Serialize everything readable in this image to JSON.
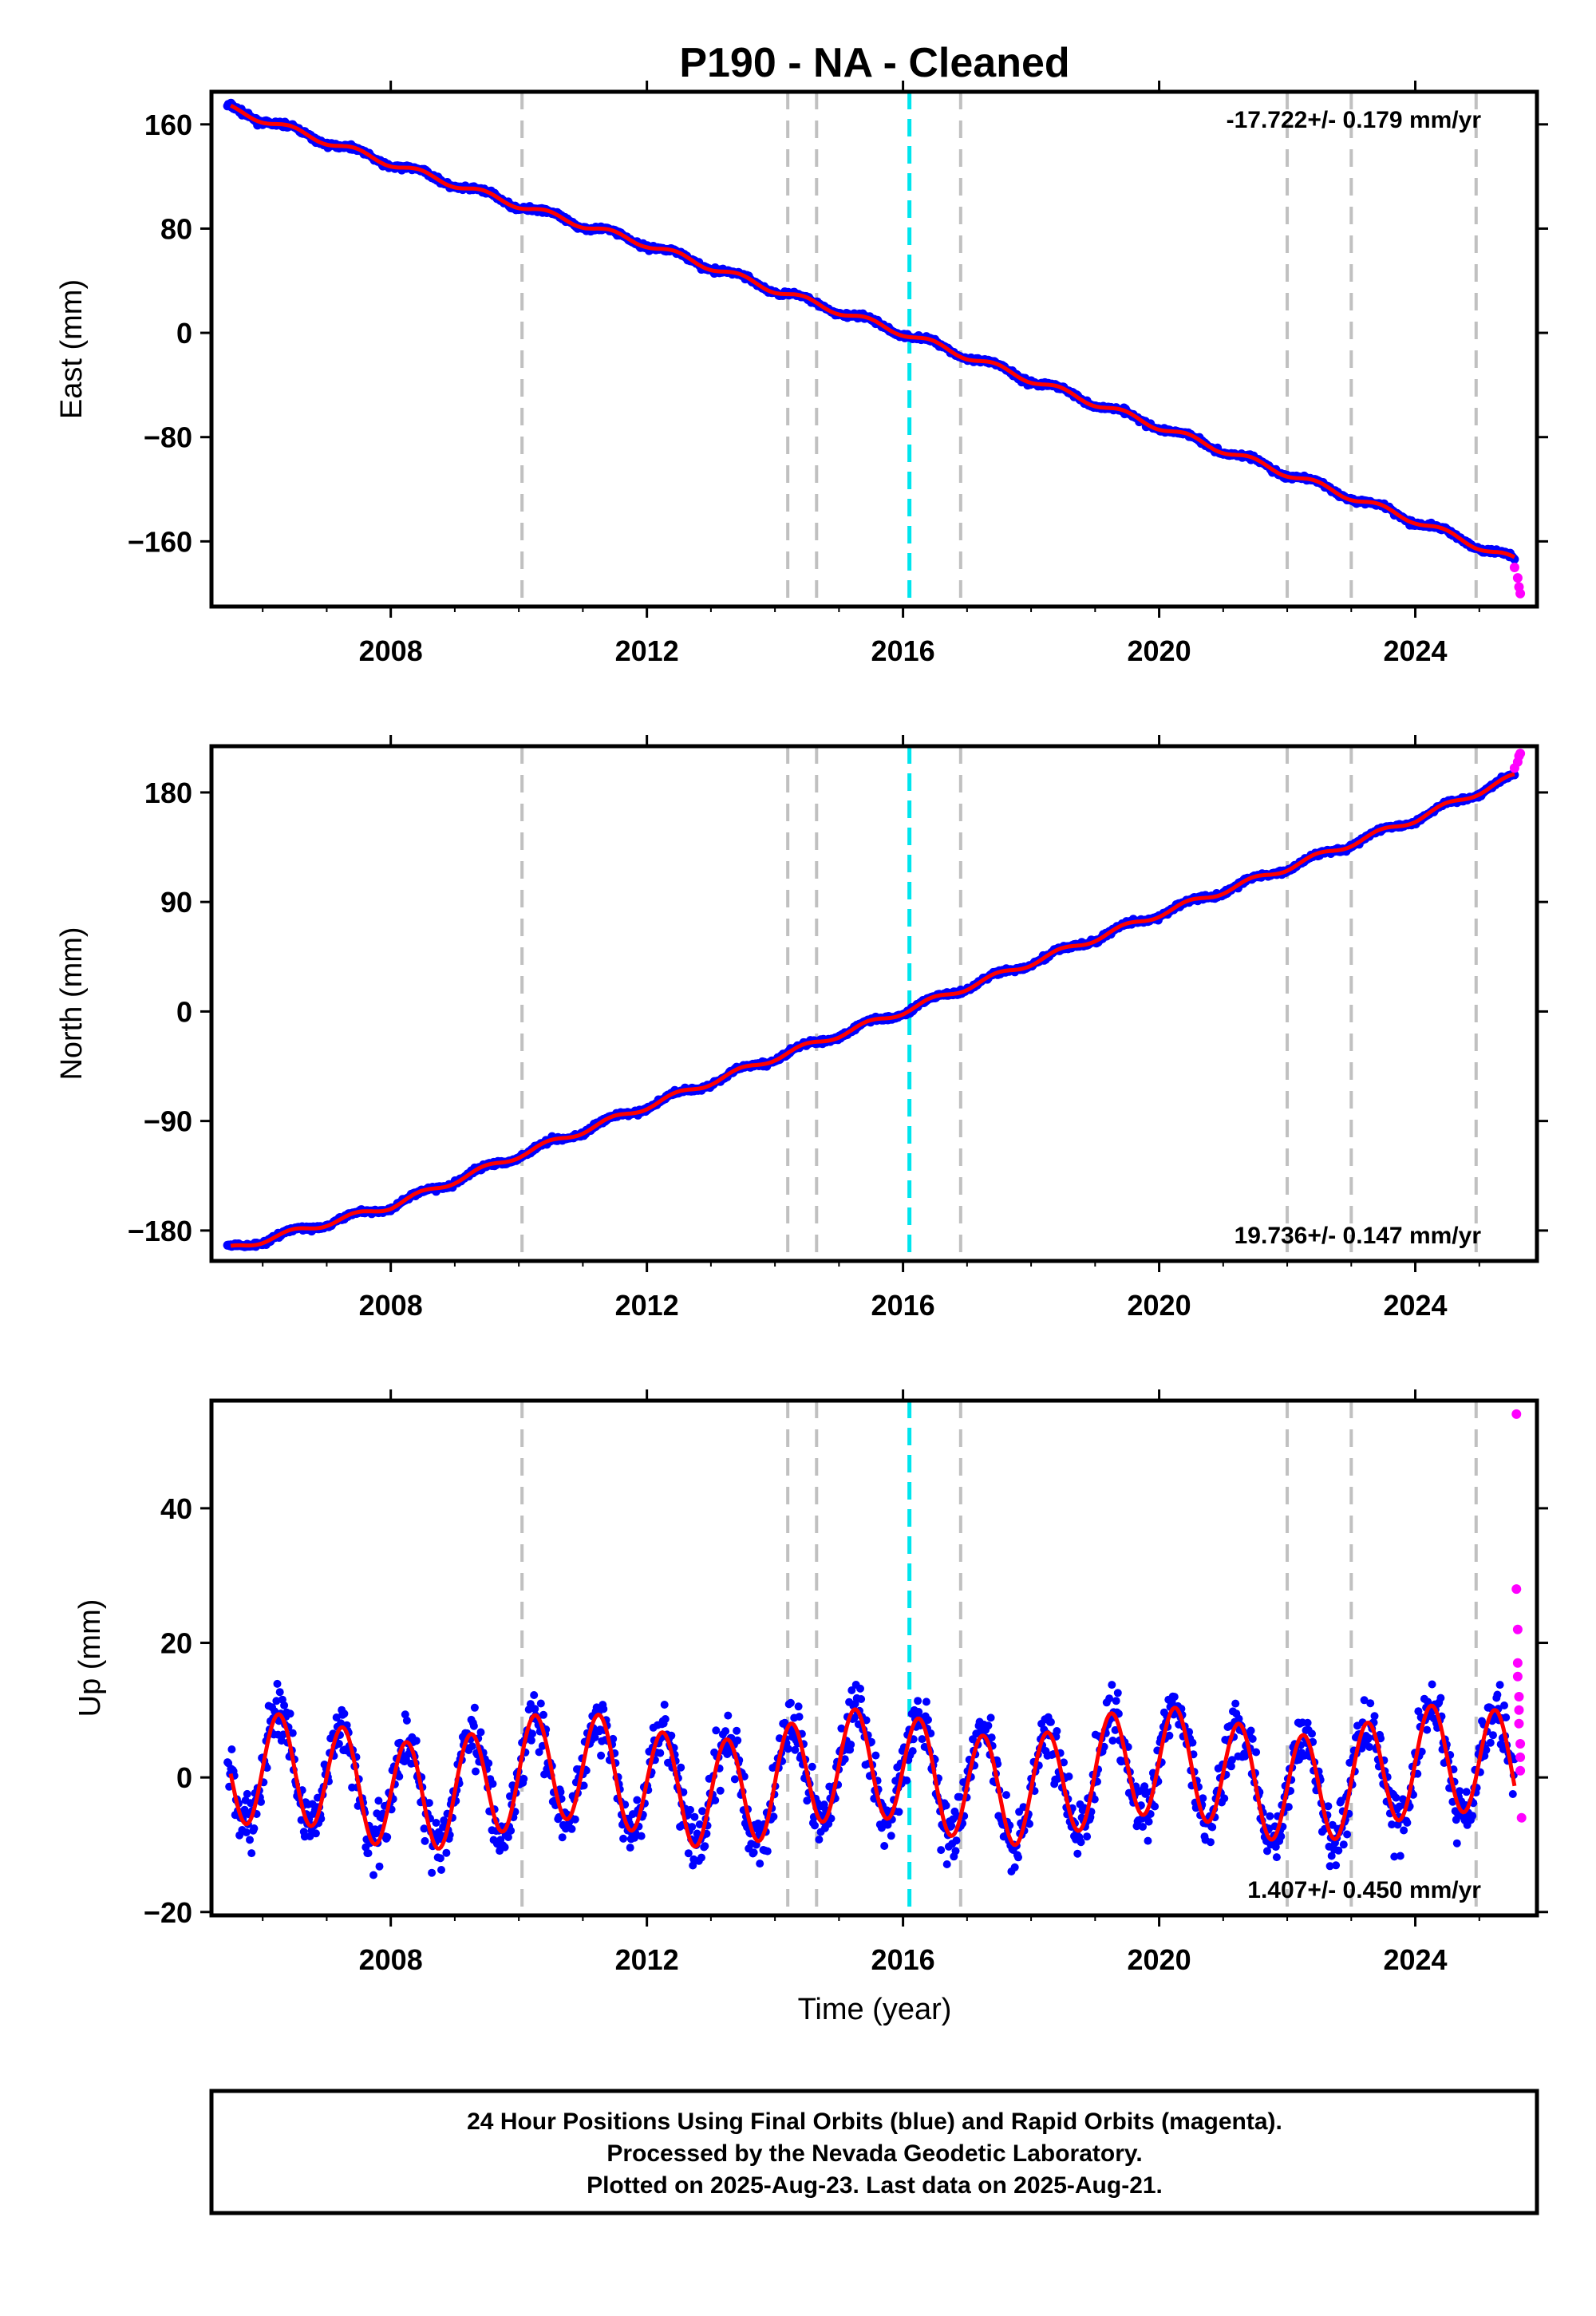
{
  "title": "P190  - NA - Cleaned",
  "colors": {
    "final_orbits": "#0000ff",
    "rapid_orbits": "#ff00ff",
    "model": "#ff0000",
    "event_line": "#c0c0c0",
    "antenna_change_line": "#00e5ee"
  },
  "x_axis": {
    "label": "Time (year)",
    "range": [
      2005.2,
      2025.9
    ],
    "ticks": [
      "2008",
      "2012",
      "2016",
      "2020",
      "2024"
    ]
  },
  "event_lines": [
    2010.05,
    2014.2,
    2014.65,
    2016.9,
    2022.0,
    2023.0,
    2024.95
  ],
  "antenna_change_line": 2016.1,
  "chart_data": [
    {
      "type": "scatter",
      "component": "East",
      "ylabel": "East (mm)",
      "ylim": [
        -210,
        185
      ],
      "yticks": [
        "160",
        "80",
        "0",
        "−80",
        "−160"
      ],
      "rate_text": "-17.722+/- 0.179 mm/yr",
      "rate_mm_per_yr": -17.722,
      "series": [
        {
          "name": "Final Orbits (blue)",
          "x": [
            2005.5,
            2008.0,
            2010.0,
            2012.0,
            2014.0,
            2016.0,
            2018.0,
            2020.0,
            2022.0,
            2024.0,
            2025.2
          ],
          "y": [
            172,
            130,
            98,
            68,
            33,
            0,
            -36,
            -72,
            -108,
            -144,
            -168
          ]
        },
        {
          "name": "Rapid Orbits (magenta)",
          "x": [
            2025.55,
            2025.6,
            2025.62,
            2025.64
          ],
          "y": [
            -180,
            -188,
            -195,
            -200
          ]
        }
      ]
    },
    {
      "type": "scatter",
      "component": "North",
      "ylabel": "North (mm)",
      "ylim": [
        -205,
        218
      ],
      "yticks": [
        "180",
        "90",
        "0",
        "−90",
        "−180"
      ],
      "rate_text": "19.736+/- 0.147 mm/yr",
      "rate_mm_per_yr": 19.736,
      "series": [
        {
          "name": "Final Orbits (blue)",
          "x": [
            2005.5,
            2008.0,
            2010.0,
            2012.0,
            2014.0,
            2016.0,
            2018.0,
            2020.0,
            2022.0,
            2024.0,
            2025.5
          ],
          "y": [
            -195,
            -160,
            -118,
            -78,
            -38,
            0,
            40,
            80,
            118,
            158,
            192
          ]
        },
        {
          "name": "Rapid Orbits (magenta)",
          "x": [
            2025.55,
            2025.6,
            2025.62,
            2025.64
          ],
          "y": [
            200,
            205,
            210,
            212
          ]
        }
      ]
    },
    {
      "type": "scatter",
      "component": "Up",
      "ylabel": "Up (mm)",
      "ylim": [
        -20.5,
        56
      ],
      "yticks": [
        "40",
        "20",
        "0",
        "−20"
      ],
      "rate_text": "1.407+/- 0.450 mm/yr",
      "rate_mm_per_yr": 1.407,
      "seasonal_amplitude_mm": 8,
      "scatter_mm": 4,
      "series": [
        {
          "name": "Rapid Orbits (magenta)",
          "x": [
            2025.58,
            2025.58,
            2025.6,
            2025.6,
            2025.6,
            2025.62,
            2025.62,
            2025.62,
            2025.64,
            2025.64,
            2025.64,
            2025.66
          ],
          "y": [
            54,
            28,
            22,
            17,
            15,
            12,
            10,
            8,
            5,
            3,
            1,
            -6
          ]
        }
      ]
    }
  ],
  "footer": {
    "line1": "24 Hour Positions Using Final Orbits (blue) and Rapid Orbits (magenta).",
    "line2": "Processed by the Nevada Geodetic Laboratory.",
    "line3": "Plotted on 2025-Aug-23. Last data on 2025-Aug-21."
  }
}
